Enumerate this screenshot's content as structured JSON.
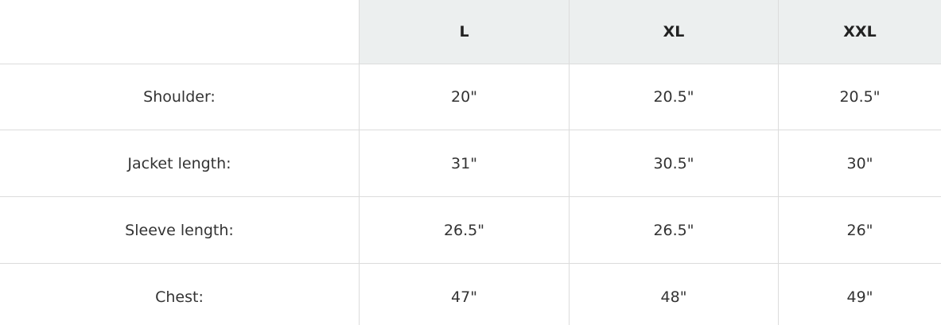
{
  "table": {
    "columns": [
      "L",
      "XL",
      "XXL"
    ],
    "rows": [
      {
        "label": "Shoulder:",
        "cells": [
          "20\"",
          "20.5\"",
          "20.5\""
        ]
      },
      {
        "label": "Jacket length:",
        "cells": [
          "31\"",
          "30.5\"",
          "30\""
        ]
      },
      {
        "label": "Sleeve length:",
        "cells": [
          "26.5\"",
          "26.5\"",
          "26\""
        ]
      },
      {
        "label": "Chest:",
        "cells": [
          "47\"",
          "48\"",
          "49\""
        ]
      }
    ]
  }
}
